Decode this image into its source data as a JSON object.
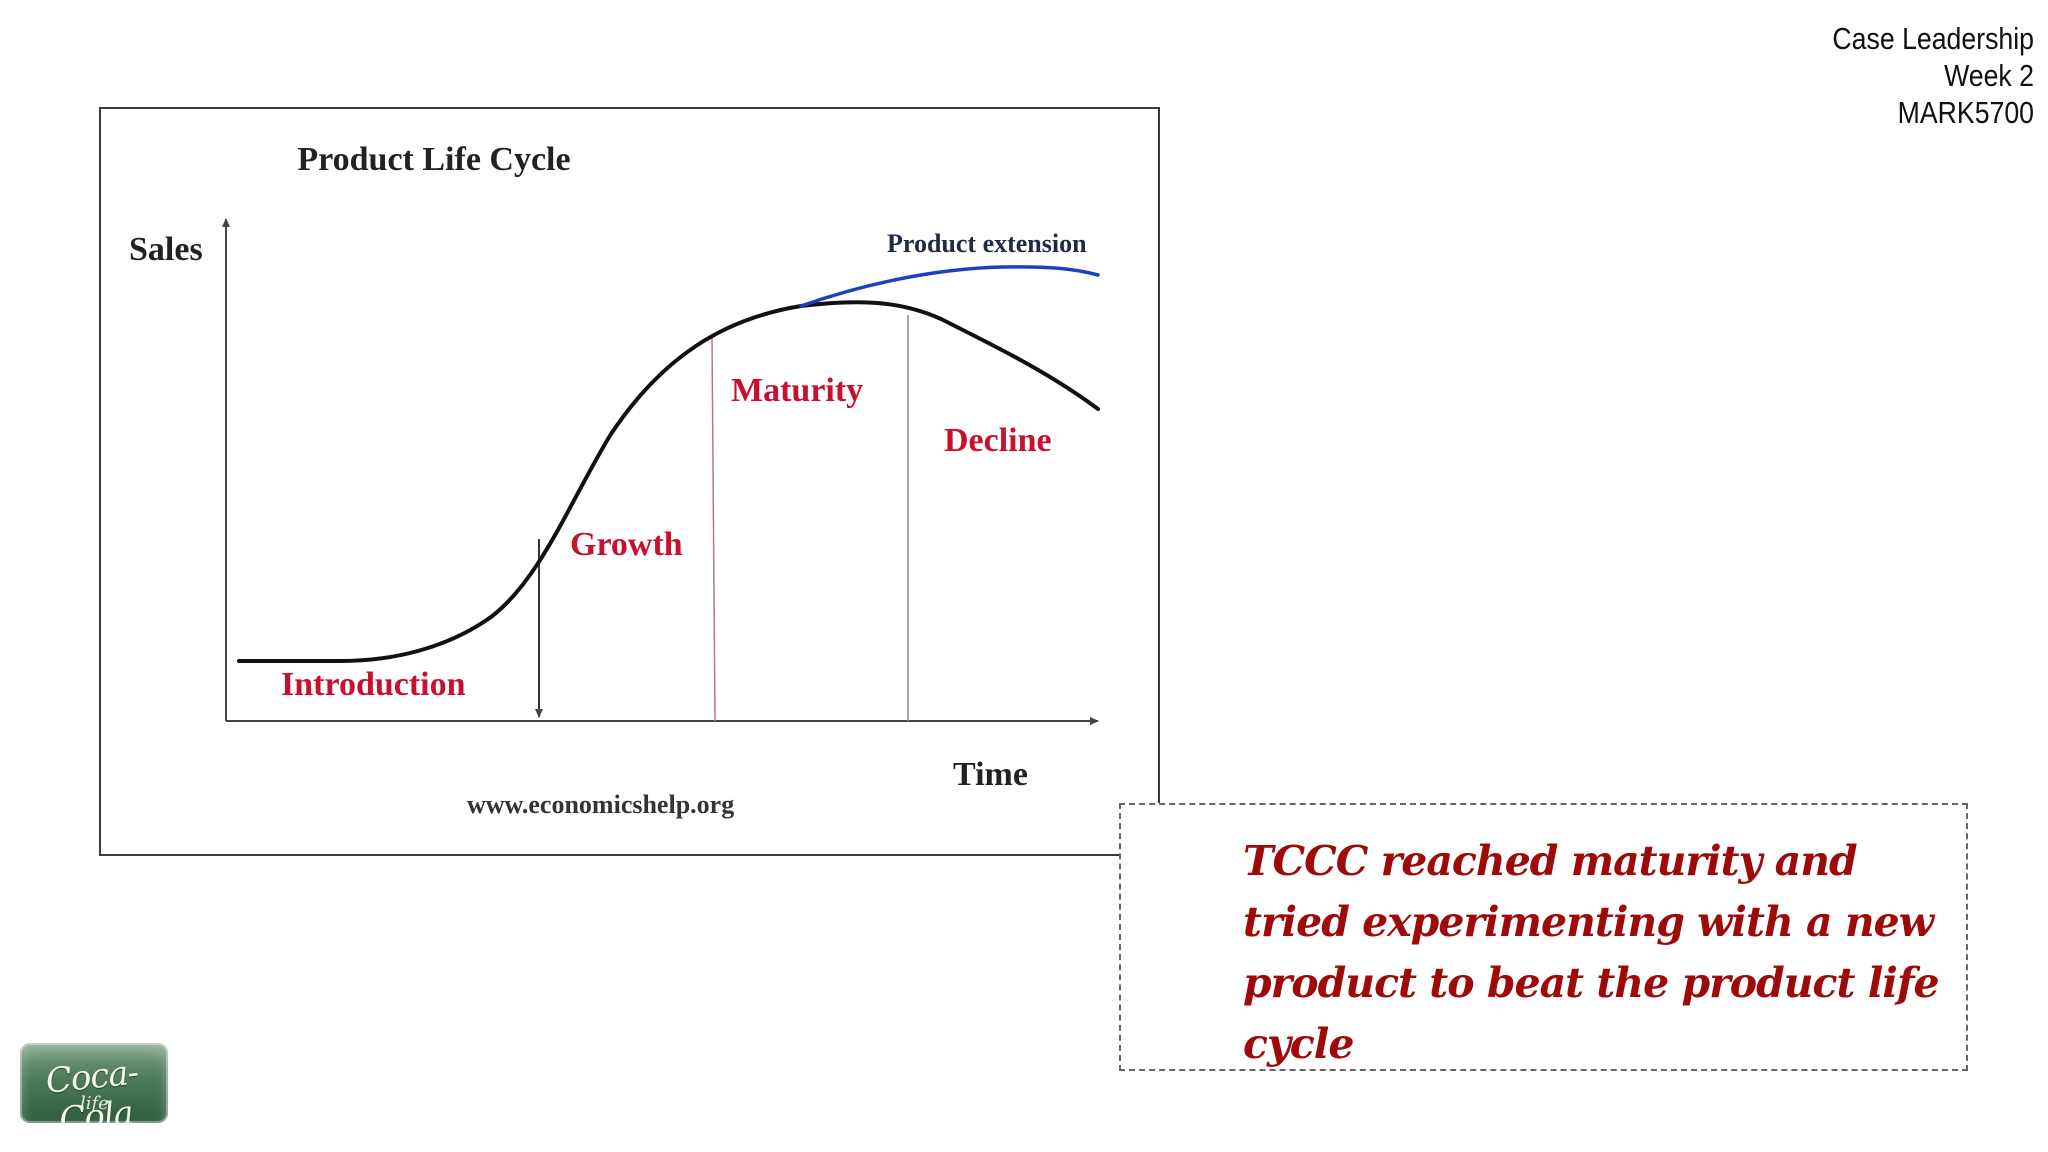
{
  "header": {
    "line1": "Case Leadership",
    "line2": "Week 2",
    "line3": "MARK5700"
  },
  "figure": {
    "title": "Product Life Cycle",
    "y_axis_label": "Sales",
    "x_axis_label": "Time",
    "stages": {
      "introduction": "Introduction",
      "growth": "Growth",
      "maturity": "Maturity",
      "decline": "Decline"
    },
    "extension_label": "Product extension",
    "source": "www.economicshelp.org",
    "colors": {
      "stage_label": "#c8102e",
      "main_curve": "#111111",
      "extension_curve": "#1f3ec4",
      "dividers": "#b57a7a"
    }
  },
  "callout": {
    "text": "TCCC reached maturity and tried experimenting with a new product to beat the product life cycle",
    "color": "#9e0a0a"
  },
  "logo": {
    "brand": "Coca-Cola",
    "sub": "life",
    "icon": "coca-cola-life-logo"
  }
}
